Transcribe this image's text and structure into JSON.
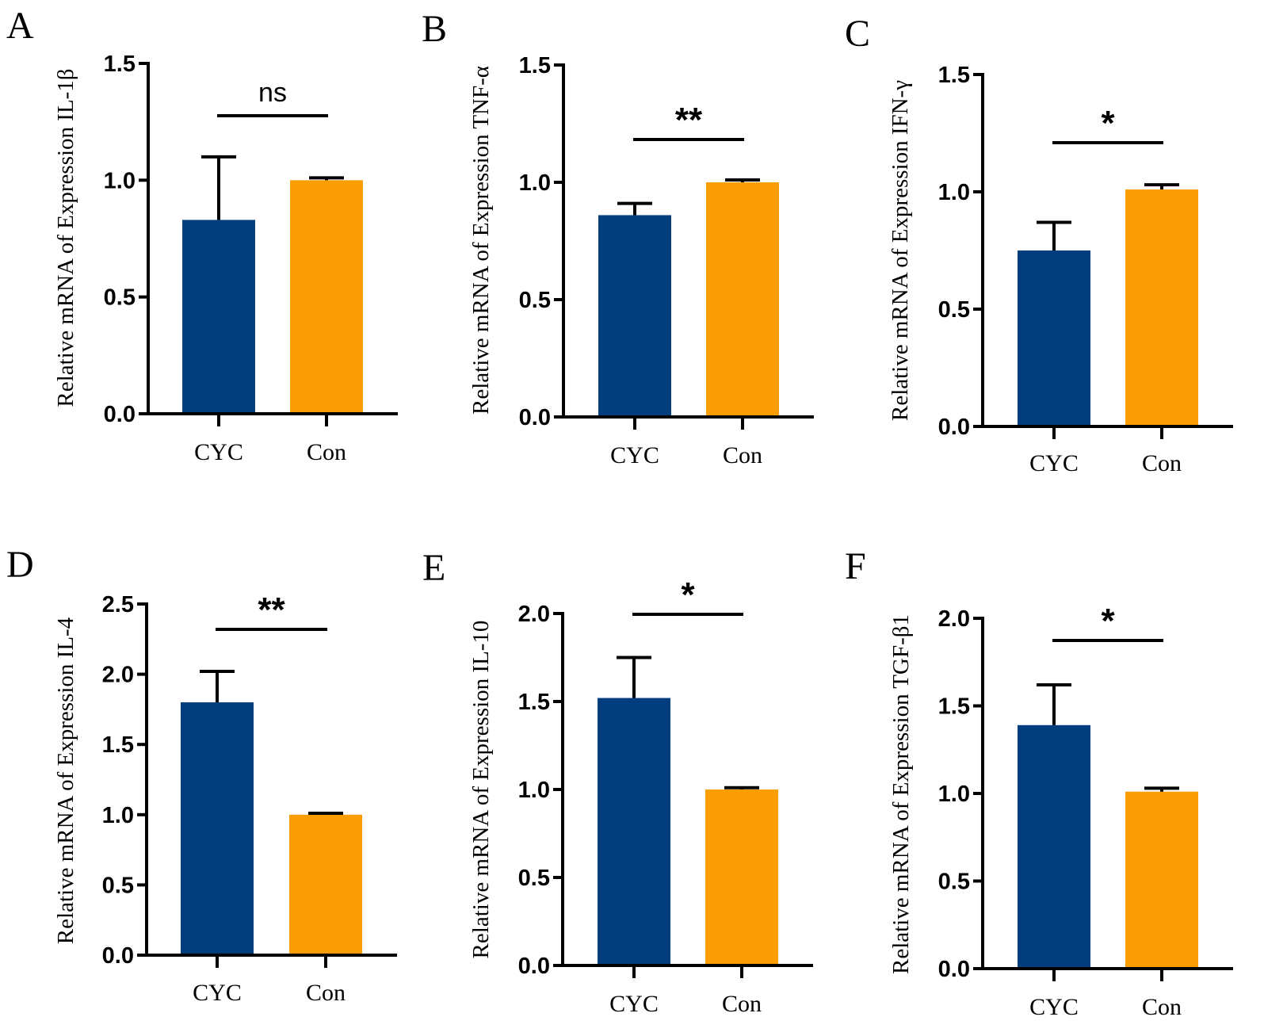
{
  "figure": {
    "colors": {
      "CYC": "#023e7d",
      "Con": "#fb9e05",
      "axis": "#000000"
    },
    "categories": [
      "CYC",
      "Con"
    ]
  },
  "chart_data": [
    {
      "type": "bar",
      "panel": "A",
      "ylabel": "Relative mRNA of Expression IL-1β",
      "categories": [
        "CYC",
        "Con"
      ],
      "values": [
        0.83,
        1.0
      ],
      "errors": [
        0.27,
        0.01
      ],
      "ylim": [
        0,
        1.5
      ],
      "yticks": [
        "0.0",
        "0.5",
        "1.0",
        "1.5"
      ],
      "significance": "ns"
    },
    {
      "type": "bar",
      "panel": "B",
      "ylabel": "Relative mRNA of Expression TNF-α",
      "categories": [
        "CYC",
        "Con"
      ],
      "values": [
        0.86,
        1.0
      ],
      "errors": [
        0.05,
        0.01
      ],
      "ylim": [
        0,
        1.5
      ],
      "yticks": [
        "0.0",
        "0.5",
        "1.0",
        "1.5"
      ],
      "significance": "**"
    },
    {
      "type": "bar",
      "panel": "C",
      "ylabel": "Relative mRNA of Expression IFN-γ",
      "categories": [
        "CYC",
        "Con"
      ],
      "values": [
        0.75,
        1.01
      ],
      "errors": [
        0.12,
        0.02
      ],
      "ylim": [
        0,
        1.5
      ],
      "yticks": [
        "0.0",
        "0.5",
        "1.0",
        "1.5"
      ],
      "significance": "*"
    },
    {
      "type": "bar",
      "panel": "D",
      "ylabel": "Relative mRNA of Expression IL-4",
      "categories": [
        "CYC",
        "Con"
      ],
      "values": [
        1.8,
        1.0
      ],
      "errors": [
        0.22,
        0.01
      ],
      "ylim": [
        0,
        2.5
      ],
      "yticks": [
        "0.0",
        "0.5",
        "1.0",
        "1.5",
        "2.0",
        "2.5"
      ],
      "significance": "**"
    },
    {
      "type": "bar",
      "panel": "E",
      "ylabel": "Relative mRNA of Expression IL-10",
      "categories": [
        "CYC",
        "Con"
      ],
      "values": [
        1.52,
        1.0
      ],
      "errors": [
        0.23,
        0.01
      ],
      "ylim": [
        0,
        2.0
      ],
      "yticks": [
        "0.0",
        "0.5",
        "1.0",
        "1.5",
        "2.0"
      ],
      "significance": "*"
    },
    {
      "type": "bar",
      "panel": "F",
      "ylabel": "Relative mRNA of Expression TGF-β1",
      "categories": [
        "CYC",
        "Con"
      ],
      "values": [
        1.39,
        1.01
      ],
      "errors": [
        0.23,
        0.02
      ],
      "ylim": [
        0,
        2.0
      ],
      "yticks": [
        "0.0",
        "0.5",
        "1.0",
        "1.5",
        "2.0"
      ],
      "significance": "*"
    }
  ]
}
